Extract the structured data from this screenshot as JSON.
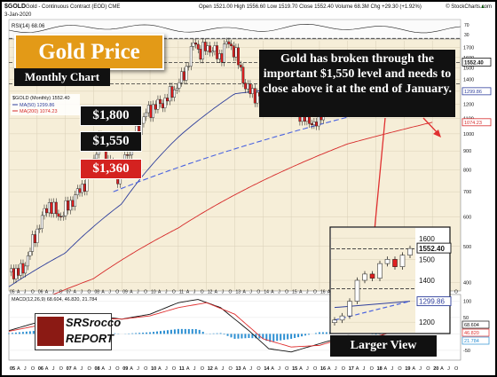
{
  "header": {
    "symbol": "$GOLD",
    "description": "Gold - Continuous Contract (EOD)  CME",
    "date": "3-Jan-2020",
    "ohlc": "Open 1521.00  High 1556.60  Low 1519.70  Close 1552.40  Volume 68.3M  Chg +29.30 (+1.92%)",
    "ohlc_arrow": "▲",
    "source": "© StockCharts.com"
  },
  "overlays": {
    "title": "Gold Price",
    "subtitle": "Monthly Chart",
    "levels": [
      "$1,800",
      "$1,550",
      "$1,360"
    ],
    "annotation": "Gold has broken through the important $1,550 level and needs to close above it at the end of January.",
    "inset_label": "Larger View",
    "logo_icon": "SRSrocco",
    "logo_line1": "SRSrocco",
    "logo_line2": "REPORT"
  },
  "colors": {
    "up_candle": "#ffffff",
    "down_candle": "#e02020",
    "ma50": "#2f3f9c",
    "ma200": "#d62a2a",
    "trendline": "#4a63e0",
    "macd": "#111111",
    "signal": "#e03030",
    "histogram": "#2c8fd2",
    "annotation_arrow": "#e03030"
  },
  "chart_data": [
    {
      "type": "line",
      "title": "Gold Price - Monthly Chart",
      "legend": [
        "$GOLD (Monthly) 1552.40",
        "MA(50) 1299.86",
        "MA(200) 1074.23"
      ],
      "rsi_label": "RSI(14) 68.06",
      "rsi_ticks": [
        "70",
        "30"
      ],
      "x_tick_labels": [
        "05",
        "A",
        "J",
        "O",
        "06",
        "A",
        "J",
        "O",
        "07",
        "A",
        "J",
        "O",
        "08",
        "A",
        "J",
        "O",
        "09",
        "A",
        "J",
        "O",
        "10",
        "A",
        "J",
        "O",
        "11",
        "A",
        "J",
        "O",
        "12",
        "A",
        "J",
        "O",
        "13",
        "A",
        "J",
        "O",
        "14",
        "A",
        "J",
        "O",
        "15",
        "A",
        "J",
        "O",
        "16",
        "A",
        "J",
        "O",
        "17",
        "A",
        "J",
        "O",
        "18",
        "A",
        "J",
        "O",
        "19",
        "A",
        "J",
        "O",
        "20",
        "A",
        "J",
        "O"
      ],
      "y_tick_labels": [
        "2000",
        "1900",
        "1800",
        "1700",
        "1600",
        "1500",
        "1400",
        "1300",
        "1200",
        "1100",
        "1000",
        "900",
        "800",
        "700",
        "600",
        "500",
        "400"
      ],
      "scale": "log",
      "ylim": [
        380,
        2000
      ],
      "price_label": "1552.40",
      "ma50_label": "1299.86",
      "ma200_label": "1074.23",
      "horizontal_levels": [
        1800,
        1550,
        1360
      ],
      "series": [
        {
          "name": "$GOLD (Monthly)",
          "x": [
            2005.0,
            2005.5,
            2006.0,
            2006.4,
            2006.8,
            2007.3,
            2007.8,
            2008.2,
            2008.8,
            2009.3,
            2009.9,
            2010.5,
            2011.0,
            2011.3,
            2011.6,
            2011.75,
            2012.0,
            2012.5,
            2012.75,
            2013.0,
            2013.4,
            2013.9,
            2014.3,
            2014.9,
            2015.5,
            2015.9,
            2016.5,
            2016.9,
            2017.7,
            2018.1,
            2018.7,
            2019.0,
            2019.6,
            2019.9,
            2020.0
          ],
          "values": [
            427,
            430,
            550,
            650,
            600,
            670,
            760,
            960,
            760,
            920,
            1150,
            1220,
            1350,
            1500,
            1800,
            1620,
            1720,
            1600,
            1770,
            1660,
            1320,
            1250,
            1300,
            1200,
            1100,
            1060,
            1350,
            1160,
            1310,
            1350,
            1180,
            1290,
            1520,
            1465,
            1552
          ]
        },
        {
          "name": "MA(50)",
          "x": [
            2005.0,
            2007.0,
            2009.0,
            2011.0,
            2013.0,
            2014.5,
            2016.0,
            2018.0,
            2019.5,
            2020.0
          ],
          "values": [
            390,
            480,
            650,
            980,
            1280,
            1320,
            1270,
            1250,
            1280,
            1300
          ]
        },
        {
          "name": "MA(200)",
          "x": [
            2005.0,
            2008.0,
            2011.0,
            2014.0,
            2017.0,
            2020.0
          ],
          "values": [
            330,
            410,
            560,
            750,
            940,
            1074
          ]
        },
        {
          "name": "Trendline",
          "x": [
            2008.7,
            2020.5
          ],
          "values": [
            700,
            1280
          ]
        }
      ]
    },
    {
      "type": "line",
      "title": "MACD(12,26,9) 68.604, 46.820, 21.784",
      "y_tick_labels": [
        "100",
        "50",
        "0",
        "-50"
      ],
      "right_labels": [
        "68.604",
        "46.820",
        "21.784"
      ],
      "ylim": [
        -80,
        120
      ],
      "series": [
        {
          "name": "MACD",
          "x": [
            2005,
            2006,
            2007,
            2008,
            2009,
            2010,
            2011,
            2011.7,
            2012.5,
            2013.5,
            2014.2,
            2015,
            2016,
            2017,
            2018,
            2019,
            2019.7,
            2020
          ],
          "values": [
            10,
            35,
            40,
            55,
            45,
            60,
            95,
            105,
            80,
            10,
            -45,
            -55,
            -30,
            -5,
            -10,
            20,
            55,
            68.6
          ]
        },
        {
          "name": "Signal",
          "x": [
            2005,
            2006,
            2007,
            2008,
            2009,
            2010,
            2011,
            2012,
            2013,
            2014,
            2015,
            2016,
            2017,
            2018,
            2019,
            2020
          ],
          "values": [
            8,
            25,
            35,
            48,
            45,
            55,
            80,
            95,
            60,
            -15,
            -40,
            -35,
            -10,
            -8,
            15,
            46.8
          ]
        }
      ]
    },
    {
      "type": "line",
      "title": "Larger View",
      "y_tick_labels": [
        "1600",
        "1500",
        "1400",
        "1300",
        "1200"
      ],
      "price_label": "1552.40",
      "ma_label": "1299.86",
      "horizontal_levels": [
        1550,
        1360
      ],
      "ylim": [
        1150,
        1650
      ],
      "series": [
        {
          "name": "Price",
          "x": [
            0,
            1,
            2,
            3,
            4,
            5,
            6,
            7,
            8,
            9,
            10
          ],
          "values": [
            1210,
            1230,
            1300,
            1400,
            1430,
            1410,
            1480,
            1500,
            1465,
            1520,
            1552
          ]
        },
        {
          "name": "MA(50)",
          "x": [
            0,
            10
          ],
          "values": [
            1270,
            1300
          ]
        },
        {
          "name": "Trendline",
          "x": [
            0,
            10
          ],
          "values": [
            1210,
            1300
          ]
        }
      ]
    }
  ]
}
